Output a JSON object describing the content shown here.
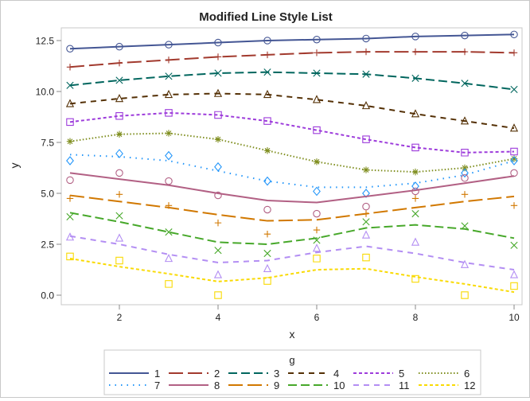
{
  "chart_data": {
    "type": "line",
    "title": "Modified Line Style List",
    "xlabel": "x",
    "ylabel": "y",
    "xlim": [
      1,
      10
    ],
    "ylim": [
      -0.3,
      13.0
    ],
    "xticks": [
      "2",
      "4",
      "6",
      "8",
      "10"
    ],
    "xtick_values": [
      2,
      4,
      6,
      8,
      10
    ],
    "yticks": [
      "0.0",
      "2.5",
      "5.0",
      "7.5",
      "10.0",
      "12.5"
    ],
    "ytick_values": [
      0,
      2.5,
      5,
      7.5,
      10,
      12.5
    ],
    "grid": false,
    "legend": {
      "title": "g",
      "placement": "bottom"
    },
    "x": [
      1,
      2,
      3,
      4,
      5,
      6,
      7,
      8,
      9,
      10
    ],
    "series": [
      {
        "name": "1",
        "color": "#445694",
        "dash": "solid",
        "marker": "circle",
        "values": [
          12.1,
          12.2,
          12.3,
          12.4,
          12.5,
          12.55,
          12.6,
          12.7,
          12.75,
          12.8
        ]
      },
      {
        "name": "2",
        "color": "#A23A2E",
        "dash": "longdash",
        "marker": "plus",
        "values": [
          11.2,
          11.4,
          11.55,
          11.7,
          11.8,
          11.9,
          11.95,
          11.95,
          11.95,
          11.9
        ]
      },
      {
        "name": "3",
        "color": "#01665E",
        "dash": "mediumdash",
        "marker": "x",
        "values": [
          10.3,
          10.55,
          10.75,
          10.9,
          10.95,
          10.9,
          10.85,
          10.65,
          10.4,
          10.1
        ]
      },
      {
        "name": "4",
        "color": "#543005",
        "dash": "dash",
        "marker": "triangle",
        "values": [
          9.4,
          9.65,
          9.85,
          9.9,
          9.85,
          9.6,
          9.3,
          8.9,
          8.55,
          8.2
        ]
      },
      {
        "name": "5",
        "color": "#9D3CDB",
        "dash": "shortdash",
        "marker": "square",
        "values": [
          8.5,
          8.8,
          8.95,
          8.85,
          8.55,
          8.1,
          7.65,
          7.25,
          7.0,
          7.05
        ]
      },
      {
        "name": "6",
        "color": "#7F8E1F",
        "dash": "dot",
        "marker": "star",
        "values": [
          7.55,
          7.9,
          7.95,
          7.65,
          7.1,
          6.55,
          6.15,
          6.05,
          6.25,
          6.7
        ]
      },
      {
        "name": "7",
        "color": "#2597FA",
        "dash": "sparsedot",
        "marker": "diamond",
        "values": [
          6.6,
          6.95,
          6.85,
          6.3,
          5.6,
          5.1,
          5.0,
          5.35,
          6.0,
          6.6
        ],
        "line_values": [
          6.9,
          6.8,
          6.6,
          6.1,
          5.6,
          5.3,
          5.3,
          5.5,
          5.9,
          6.6
        ]
      },
      {
        "name": "8",
        "color": "#B26084",
        "dash": "solid",
        "marker": "circle",
        "values": [
          5.65,
          6.0,
          5.6,
          4.9,
          4.2,
          4.0,
          4.35,
          5.1,
          5.75,
          6.0
        ],
        "line_values": [
          6.0,
          5.7,
          5.4,
          5.0,
          4.65,
          4.55,
          4.85,
          5.15,
          5.5,
          5.85
        ]
      },
      {
        "name": "9",
        "color": "#D17800",
        "dash": "longdash",
        "marker": "plus",
        "values": [
          4.75,
          4.95,
          4.4,
          3.55,
          3.0,
          3.2,
          4.0,
          4.75,
          4.95,
          4.4
        ],
        "line_values": [
          4.9,
          4.6,
          4.3,
          3.95,
          3.65,
          3.7,
          4.0,
          4.3,
          4.6,
          4.85
        ]
      },
      {
        "name": "10",
        "color": "#47A82A",
        "dash": "mediumdash",
        "marker": "x",
        "values": [
          3.85,
          3.9,
          3.1,
          2.2,
          2.05,
          2.7,
          3.6,
          4.0,
          3.4,
          2.45
        ],
        "line_values": [
          4.05,
          3.6,
          3.1,
          2.6,
          2.5,
          2.8,
          3.3,
          3.45,
          3.25,
          2.8
        ]
      },
      {
        "name": "11",
        "color": "#B38EF3",
        "dash": "dash",
        "marker": "triangle",
        "values": [
          2.85,
          2.8,
          1.8,
          1.0,
          1.3,
          2.3,
          2.95,
          2.6,
          1.5,
          1.0
        ],
        "line_values": [
          2.9,
          2.5,
          2.0,
          1.6,
          1.7,
          2.1,
          2.4,
          2.05,
          1.6,
          1.25
        ]
      },
      {
        "name": "12",
        "color": "#F9DA04",
        "dash": "shortdash",
        "marker": "square",
        "values": [
          1.9,
          1.7,
          0.55,
          0.0,
          0.7,
          1.8,
          1.85,
          0.8,
          0.0,
          0.45
        ],
        "line_values": [
          1.8,
          1.4,
          1.05,
          0.67,
          0.85,
          1.25,
          1.3,
          0.9,
          0.55,
          0.15
        ]
      }
    ]
  }
}
